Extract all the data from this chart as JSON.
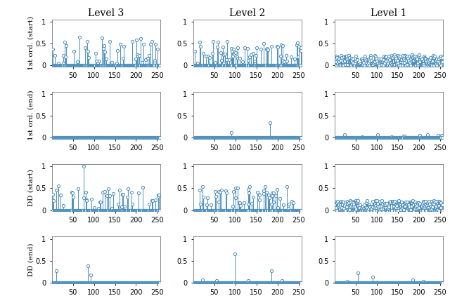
{
  "col_titles": [
    "Level 3",
    "Level 2",
    "Level 1"
  ],
  "row_labels": [
    "1st ord. (start)",
    "1st ord. (end)",
    "DD (start)",
    "DD (end)"
  ],
  "n_points": 256,
  "xlim": [
    0,
    258
  ],
  "ylim": [
    -0.02,
    1.05
  ],
  "yticks": [
    0,
    0.5,
    1
  ],
  "ytick_labels": [
    "0",
    "0.5",
    "1"
  ],
  "xticks": [
    50,
    100,
    150,
    200,
    250
  ],
  "color": "#4C8FBD",
  "markersize": 3.0,
  "marker_lw": 0.7,
  "linewidth": 0.7,
  "title_fontsize": 10,
  "label_fontsize": 7.5,
  "tick_fontsize": 7
}
